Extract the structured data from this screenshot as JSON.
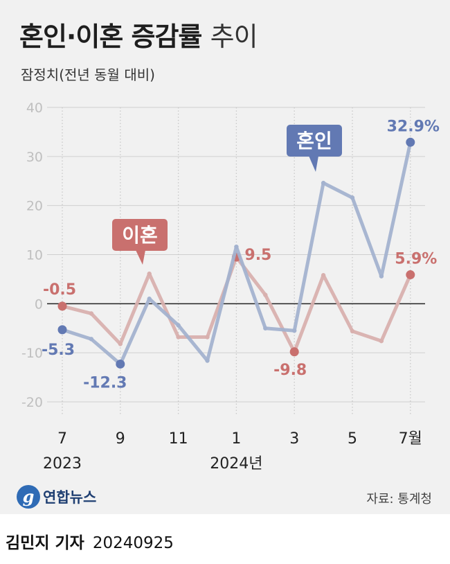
{
  "title": {
    "bold": "혼인·이혼 증감률",
    "light": "추이"
  },
  "subtitle": "잠정치(전년 동월 대비)",
  "chart_data": {
    "type": "line",
    "title": "혼인·이혼 증감률 추이",
    "ylabel": "잠정치(전년 동월 대비)",
    "ylim": [
      -20,
      40
    ],
    "yticks": [
      40,
      30,
      20,
      10,
      0,
      -10,
      -20
    ],
    "months": [
      "2023-07",
      "2023-08",
      "2023-09",
      "2023-10",
      "2023-11",
      "2023-12",
      "2024-01",
      "2024-02",
      "2024-03",
      "2024-04",
      "2024-05",
      "2024-06",
      "2024-07"
    ],
    "x_tick_labels": [
      "7",
      "9",
      "11",
      "1",
      "3",
      "5",
      "7월"
    ],
    "x_tick_index": [
      0,
      2,
      4,
      6,
      8,
      10,
      12
    ],
    "years": [
      {
        "label": "2023",
        "index": 0
      },
      {
        "label": "2024년",
        "index": 6
      }
    ],
    "series": [
      {
        "name": "혼인",
        "color": "#6279b3",
        "line_color": "#a3b2cf",
        "values": [
          -5.3,
          -7.2,
          -12.3,
          1.0,
          -4.4,
          -11.6,
          11.6,
          -5.0,
          -5.5,
          24.6,
          21.6,
          5.6,
          32.9
        ],
        "labels": [
          {
            "index": 0,
            "text": "-5.3"
          },
          {
            "index": 2,
            "text": "-12.3"
          },
          {
            "index": 12,
            "text": "32.9%"
          }
        ]
      },
      {
        "name": "이혼",
        "color": "#c9706e",
        "line_color": "#d8b0ae",
        "values": [
          -0.5,
          -2.0,
          -8.2,
          6.1,
          -6.8,
          -6.8,
          9.5,
          1.8,
          -9.8,
          5.8,
          -5.6,
          -7.6,
          5.9
        ],
        "labels": [
          {
            "index": 0,
            "text": "-0.5"
          },
          {
            "index": 6,
            "text": "9.5"
          },
          {
            "index": 8,
            "text": "-9.8"
          },
          {
            "index": 12,
            "text": "5.9%"
          }
        ]
      }
    ],
    "callouts": [
      {
        "series": "혼인",
        "text": "혼인"
      },
      {
        "series": "이혼",
        "text": "이혼"
      }
    ]
  },
  "logo": {
    "mark": "g",
    "text": "연합뉴스"
  },
  "source": "자료: 통계청",
  "byline": {
    "reporter": "김민지 기자",
    "date": "20240925"
  }
}
